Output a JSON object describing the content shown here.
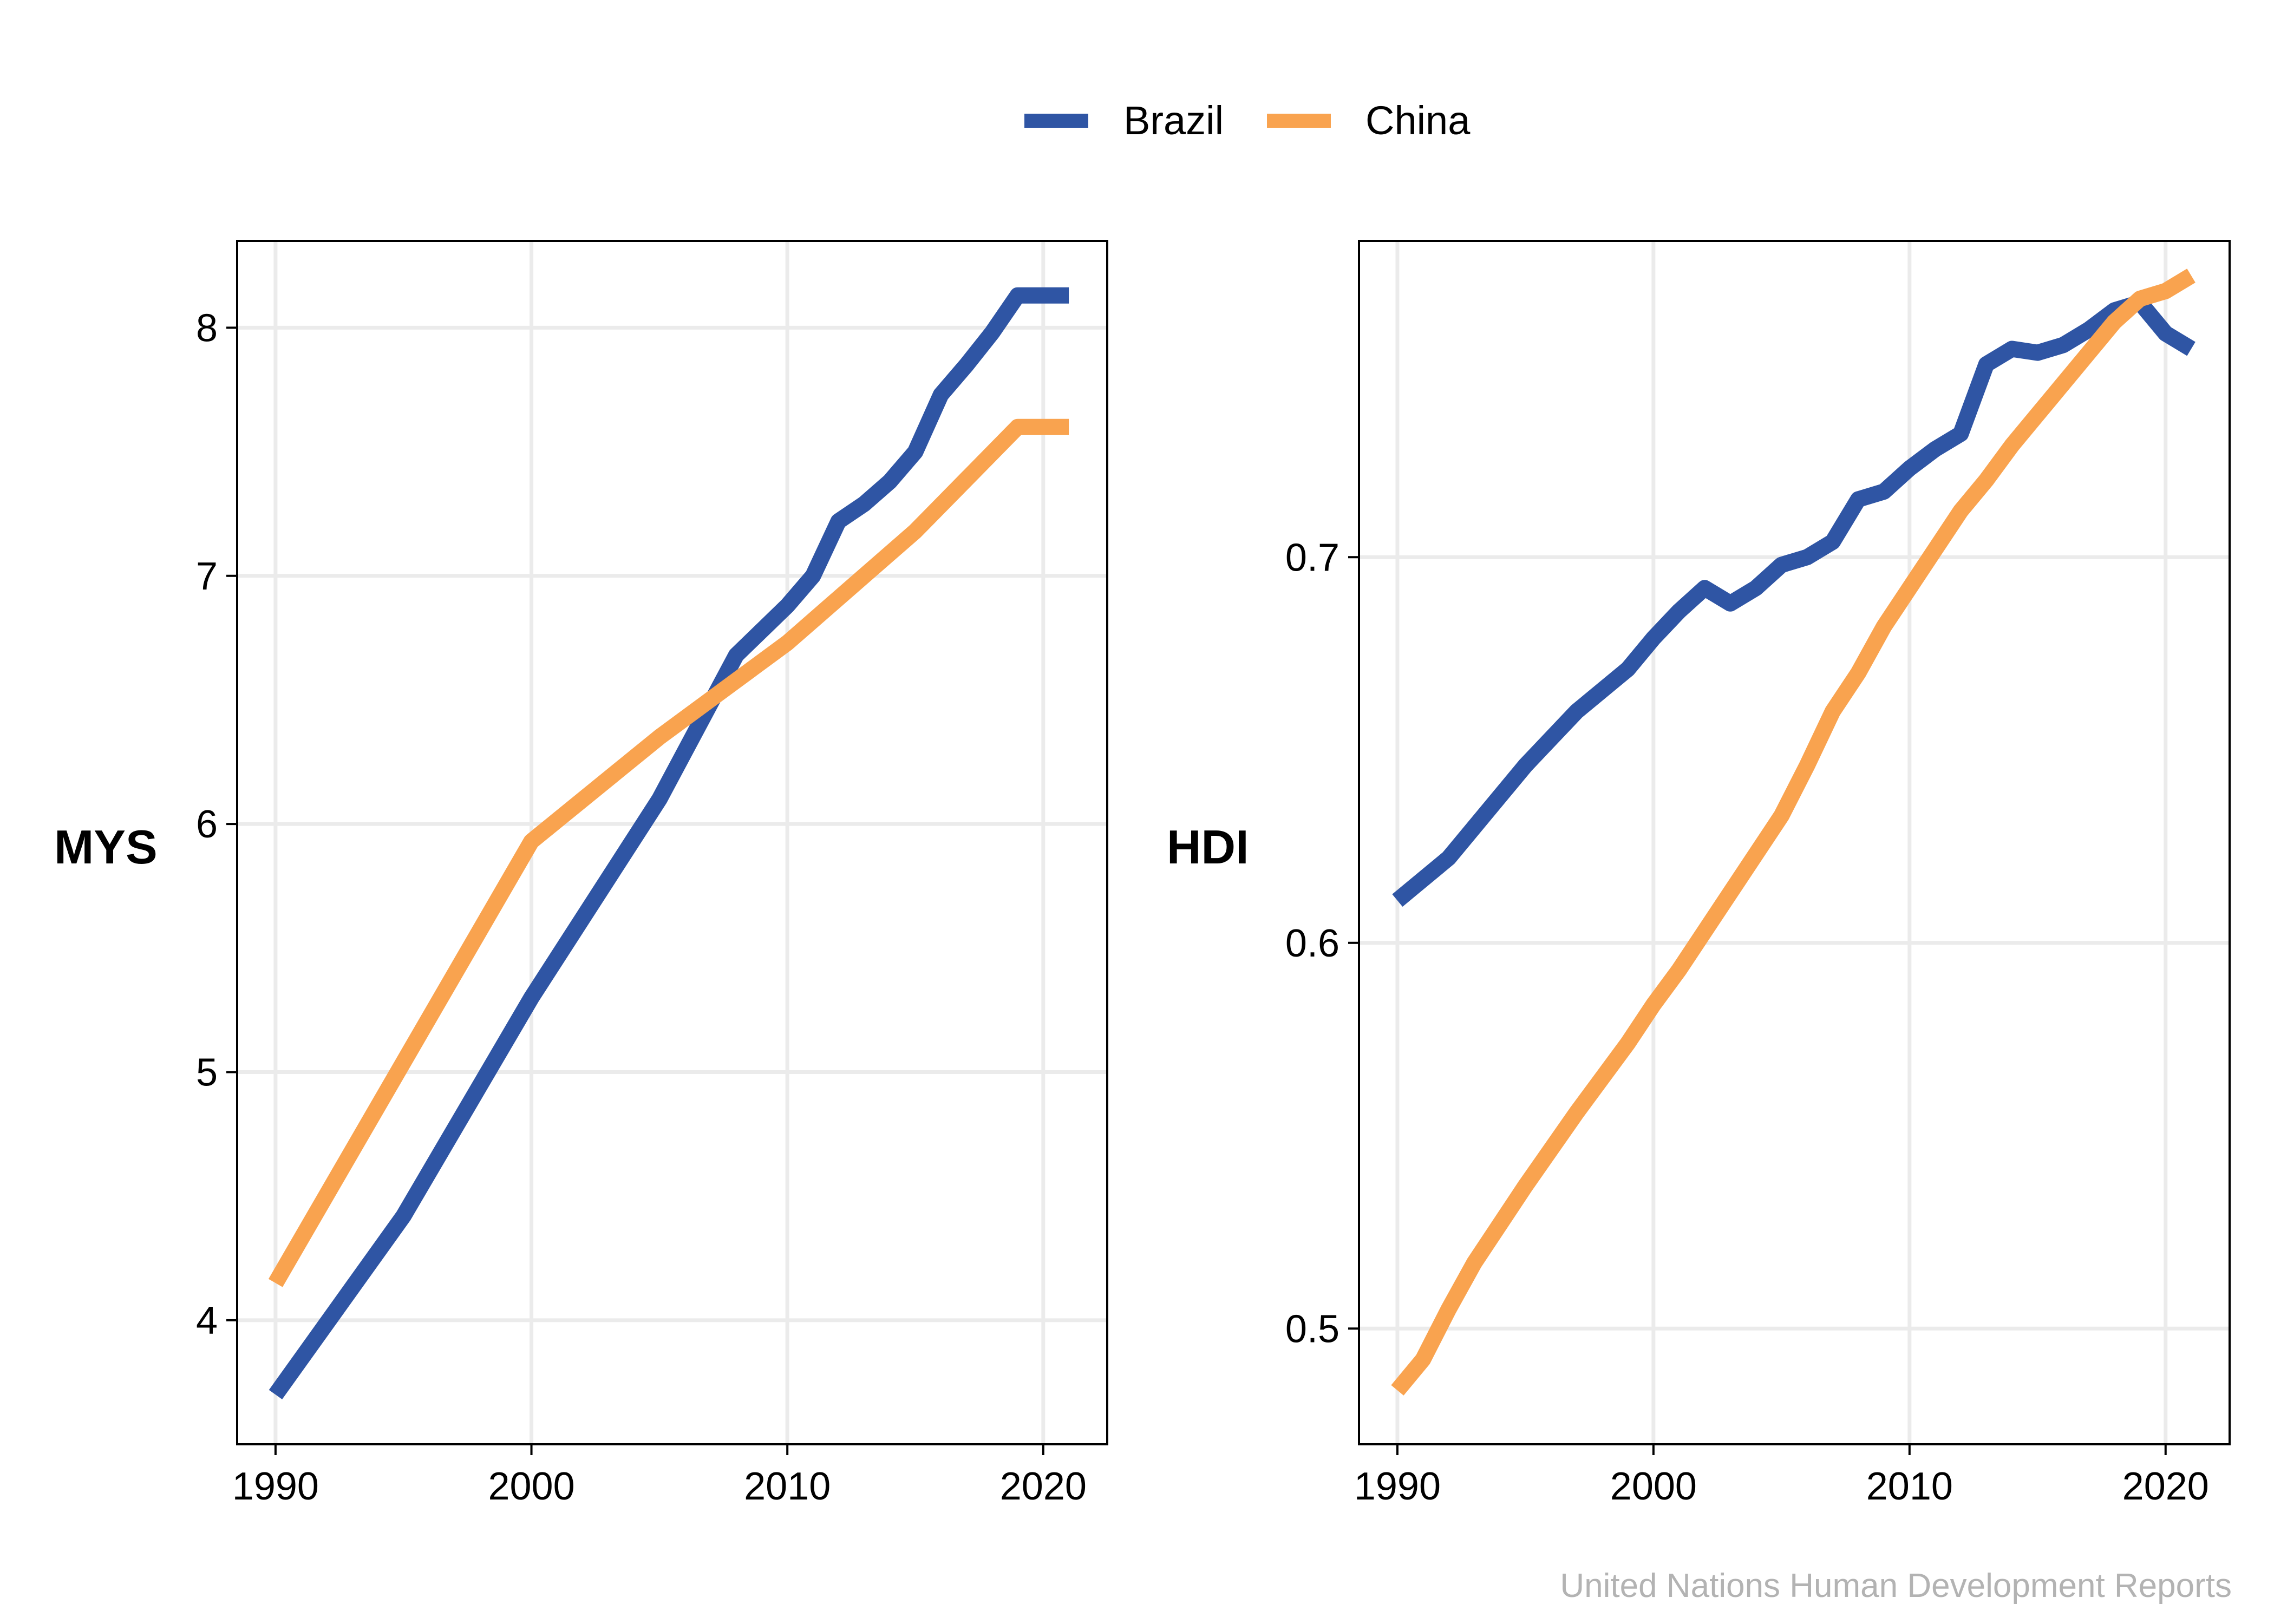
{
  "caption": "United Nations Human Development Reports",
  "legend": [
    {
      "name": "Brazil",
      "color": "#2f55a4"
    },
    {
      "name": "China",
      "color": "#f9a34f"
    }
  ],
  "chart_data": [
    {
      "type": "line",
      "ylabel": "MYS",
      "xlim": [
        1988.5,
        2022.5
      ],
      "ylim": [
        3.5,
        8.35
      ],
      "xticks": [
        1990,
        2000,
        2010,
        2020
      ],
      "yticks": [
        4,
        5,
        6,
        7,
        8
      ],
      "grid": true,
      "series": [
        {
          "name": "Brazil",
          "color": "#2f55a4",
          "points": [
            [
              1990,
              3.7
            ],
            [
              1995,
              4.42
            ],
            [
              2000,
              5.3
            ],
            [
              2005,
              6.1
            ],
            [
              2008,
              6.68
            ],
            [
              2010,
              6.88
            ],
            [
              2011,
              7.0
            ],
            [
              2012,
              7.22
            ],
            [
              2013,
              7.29
            ],
            [
              2014,
              7.38
            ],
            [
              2015,
              7.5
            ],
            [
              2016,
              7.73
            ],
            [
              2017,
              7.85
            ],
            [
              2018,
              7.98
            ],
            [
              2019,
              8.13
            ],
            [
              2021,
              8.13
            ]
          ]
        },
        {
          "name": "China",
          "color": "#f9a34f",
          "points": [
            [
              1990,
              4.15
            ],
            [
              2000,
              5.93
            ],
            [
              2005,
              6.35
            ],
            [
              2010,
              6.73
            ],
            [
              2015,
              7.18
            ],
            [
              2019,
              7.6
            ],
            [
              2021,
              7.6
            ]
          ]
        }
      ]
    },
    {
      "type": "line",
      "ylabel": "HDI",
      "xlim": [
        1988.5,
        2022.5
      ],
      "ylim": [
        0.47,
        0.782
      ],
      "xticks": [
        1990,
        2000,
        2010,
        2020
      ],
      "yticks": [
        0.5,
        0.6,
        0.7
      ],
      "ytick_labels": [
        "0.5",
        "0.6",
        "0.7"
      ],
      "grid": true,
      "series": [
        {
          "name": "Brazil",
          "color": "#2f55a4",
          "points": [
            [
              1990,
              0.611
            ],
            [
              1992,
              0.622
            ],
            [
              1995,
              0.646
            ],
            [
              1997,
              0.66
            ],
            [
              1999,
              0.671
            ],
            [
              2000,
              0.679
            ],
            [
              2001,
              0.686
            ],
            [
              2002,
              0.692
            ],
            [
              2003,
              0.688
            ],
            [
              2004,
              0.692
            ],
            [
              2005,
              0.698
            ],
            [
              2006,
              0.7
            ],
            [
              2007,
              0.704
            ],
            [
              2008,
              0.715
            ],
            [
              2009,
              0.717
            ],
            [
              2010,
              0.723
            ],
            [
              2011,
              0.728
            ],
            [
              2012,
              0.732
            ],
            [
              2013,
              0.75
            ],
            [
              2014,
              0.754
            ],
            [
              2015,
              0.753
            ],
            [
              2016,
              0.755
            ],
            [
              2017,
              0.759
            ],
            [
              2018,
              0.764
            ],
            [
              2019,
              0.766
            ],
            [
              2020,
              0.758
            ],
            [
              2021,
              0.754
            ]
          ]
        },
        {
          "name": "China",
          "color": "#f9a34f",
          "points": [
            [
              1990,
              0.484
            ],
            [
              1991,
              0.492
            ],
            [
              1992,
              0.505
            ],
            [
              1993,
              0.517
            ],
            [
              1995,
              0.537
            ],
            [
              1997,
              0.556
            ],
            [
              1999,
              0.574
            ],
            [
              2000,
              0.584
            ],
            [
              2001,
              0.593
            ],
            [
              2003,
              0.613
            ],
            [
              2005,
              0.633
            ],
            [
              2006,
              0.646
            ],
            [
              2007,
              0.66
            ],
            [
              2008,
              0.67
            ],
            [
              2009,
              0.682
            ],
            [
              2010,
              0.692
            ],
            [
              2011,
              0.702
            ],
            [
              2012,
              0.712
            ],
            [
              2013,
              0.72
            ],
            [
              2014,
              0.729
            ],
            [
              2015,
              0.737
            ],
            [
              2016,
              0.745
            ],
            [
              2017,
              0.753
            ],
            [
              2018,
              0.761
            ],
            [
              2019,
              0.767
            ],
            [
              2020,
              0.769
            ],
            [
              2021,
              0.773
            ]
          ]
        }
      ]
    }
  ]
}
